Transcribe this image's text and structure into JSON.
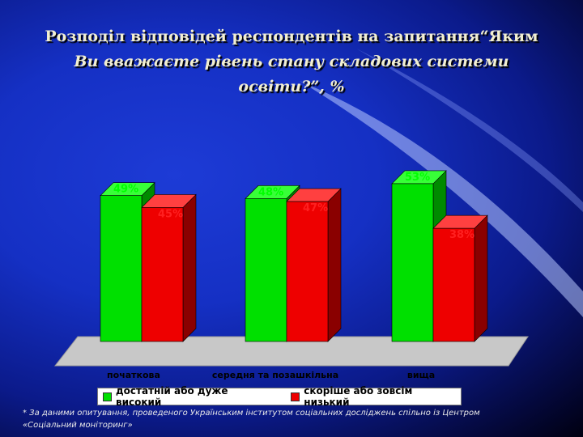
{
  "slide": {
    "title_line1": "Розподіл відповідей респондентів на запитання“Яким",
    "title_line2": "Ви вважаєте рівень стану складових системи",
    "title_line3": "освіти?”, %",
    "footnote": "* За даними опитування, проведеного Українським інститутом соціальних досліджень спільно із Центром «Соціальний моніторинг»"
  },
  "chart_data": {
    "type": "bar",
    "categories": [
      "початкова",
      "середня та позашкільна",
      "вища"
    ],
    "series": [
      {
        "name": "достатній або дуже високий",
        "values": [
          49,
          48,
          53
        ],
        "labels": [
          "49%",
          "48%",
          "53%"
        ],
        "color": "#00e000"
      },
      {
        "name": "скоріше або зовсім низький",
        "values": [
          45,
          47,
          38
        ],
        "labels": [
          "45%",
          "47%",
          "38%"
        ],
        "color": "#ee0000"
      }
    ],
    "legend_position": "bottom",
    "ylim": [
      0,
      60
    ],
    "grid": false
  }
}
